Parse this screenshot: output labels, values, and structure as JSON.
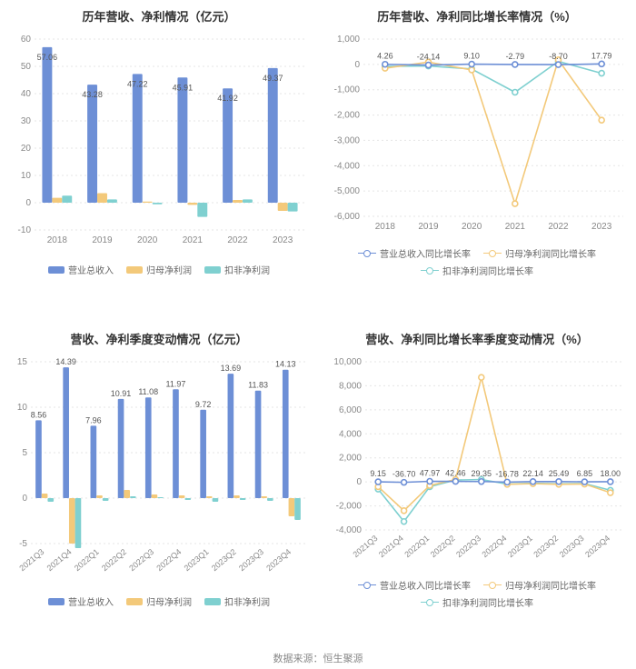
{
  "footer": "数据来源：恒生聚源",
  "colors": {
    "blue": "#6d8fd6",
    "orange": "#f3c97a",
    "teal": "#7fd0d0",
    "grid": "#e5e5e5",
    "axis": "#888888",
    "text": "#555555"
  },
  "panels": {
    "topLeft": {
      "title": "历年营收、净利情况（亿元）",
      "title_fontsize": 13,
      "type": "bar",
      "ylim": [
        -10,
        60
      ],
      "ytick_step": 10,
      "background_color": "#ffffff",
      "categories": [
        "2018",
        "2019",
        "2020",
        "2021",
        "2022",
        "2023"
      ],
      "series": [
        {
          "name": "营业总收入",
          "color": "#6d8fd6",
          "values": [
            57.06,
            43.28,
            47.22,
            45.91,
            41.92,
            49.37
          ],
          "labels": [
            "57.06",
            "43.28",
            "47.22",
            "45.91",
            "41.92",
            "49.37"
          ]
        },
        {
          "name": "归母净利润",
          "color": "#f3c97a",
          "values": [
            1.8,
            3.5,
            0.4,
            -0.8,
            1.0,
            -3.0
          ]
        },
        {
          "name": "扣非净利润",
          "color": "#7fd0d0",
          "values": [
            2.6,
            1.2,
            -0.6,
            -5.2,
            1.2,
            -3.2
          ]
        }
      ],
      "bar_width": 0.22,
      "legend": [
        "营业总收入",
        "归母净利润",
        "扣非净利润"
      ]
    },
    "topRight": {
      "title": "历年营收、净利同比增长率情况（%）",
      "title_fontsize": 13,
      "type": "line",
      "ylim": [
        -6000,
        1000
      ],
      "ytick_step": 1000,
      "background_color": "#ffffff",
      "categories": [
        "2018",
        "2019",
        "2020",
        "2021",
        "2022",
        "2023"
      ],
      "point_labels": [
        "4.26",
        "-24.14",
        "9.10",
        "-2.79",
        "-8.70",
        "17.79"
      ],
      "series": [
        {
          "name": "营业总收入同比增长率",
          "color": "#6d8fd6",
          "values": [
            4.26,
            -24.14,
            9.1,
            -2.79,
            -8.7,
            17.79
          ]
        },
        {
          "name": "归母净利润同比增长率",
          "color": "#f3c97a",
          "values": [
            -150,
            90,
            -220,
            -5500,
            180,
            -2200
          ]
        },
        {
          "name": "扣非净利润同比增长率",
          "color": "#7fd0d0",
          "values": [
            -80,
            -60,
            -180,
            -1100,
            120,
            -350
          ]
        }
      ],
      "legend": [
        "营业总收入同比增长率",
        "归母净利润同比增长率",
        "扣非净利润同比增长率"
      ]
    },
    "bottomLeft": {
      "title": "营收、净利季度变动情况（亿元）",
      "title_fontsize": 13,
      "type": "bar",
      "ylim": [
        -5,
        15
      ],
      "ytick_step": 5,
      "background_color": "#ffffff",
      "x_rotate": -40,
      "categories": [
        "2021Q3",
        "2021Q4",
        "2022Q1",
        "2022Q2",
        "2022Q3",
        "2022Q4",
        "2023Q1",
        "2023Q2",
        "2023Q3",
        "2023Q4"
      ],
      "series": [
        {
          "name": "营业总收入",
          "color": "#6d8fd6",
          "values": [
            8.56,
            14.39,
            7.96,
            10.91,
            11.08,
            11.97,
            9.72,
            13.69,
            11.83,
            14.13
          ],
          "labels": [
            "8.56",
            "14.39",
            "7.96",
            "10.91",
            "11.08",
            "11.97",
            "9.72",
            "13.69",
            "11.83",
            "14.13"
          ]
        },
        {
          "name": "归母净利润",
          "color": "#f3c97a",
          "values": [
            0.5,
            -5.0,
            0.3,
            0.9,
            0.4,
            0.3,
            0.2,
            0.3,
            0.2,
            -2.0
          ]
        },
        {
          "name": "扣非净利润",
          "color": "#7fd0d0",
          "values": [
            -0.4,
            -5.5,
            -0.3,
            0.2,
            0.1,
            -0.2,
            -0.4,
            -0.2,
            -0.3,
            -2.4
          ]
        }
      ],
      "bar_width": 0.22,
      "legend": [
        "营业总收入",
        "归母净利润",
        "扣非净利润"
      ]
    },
    "bottomRight": {
      "title": "营收、净利同比增长率季度变动情况（%）",
      "title_fontsize": 13,
      "type": "line",
      "ylim": [
        -4000,
        10000
      ],
      "ytick_step": 2000,
      "background_color": "#ffffff",
      "x_rotate": -40,
      "categories": [
        "2021Q3",
        "2021Q4",
        "2022Q1",
        "2022Q2",
        "2022Q3",
        "2022Q4",
        "2023Q1",
        "2023Q2",
        "2023Q3",
        "2023Q4"
      ],
      "point_labels": [
        "9.15",
        "-36.70",
        "47.97",
        "42.46",
        "29.35",
        "-16.78",
        "22.14",
        "25.49",
        "6.85",
        "18.00"
      ],
      "series": [
        {
          "name": "营业总收入同比增长率",
          "color": "#6d8fd6",
          "values": [
            9.15,
            -36.7,
            47.97,
            42.46,
            29.35,
            -16.78,
            22.14,
            25.49,
            6.85,
            18.0
          ]
        },
        {
          "name": "归母净利润同比增长率",
          "color": "#f3c97a",
          "values": [
            -400,
            -2400,
            -300,
            200,
            8700,
            -200,
            -150,
            -200,
            -180,
            -900
          ]
        },
        {
          "name": "扣非净利润同比增长率",
          "color": "#7fd0d0",
          "values": [
            -600,
            -3300,
            -400,
            150,
            200,
            -180,
            -120,
            -160,
            -140,
            -700
          ]
        }
      ],
      "legend": [
        "营业总收入同比增长率",
        "归母净利润同比增长率",
        "扣非净利润同比增长率"
      ]
    }
  }
}
